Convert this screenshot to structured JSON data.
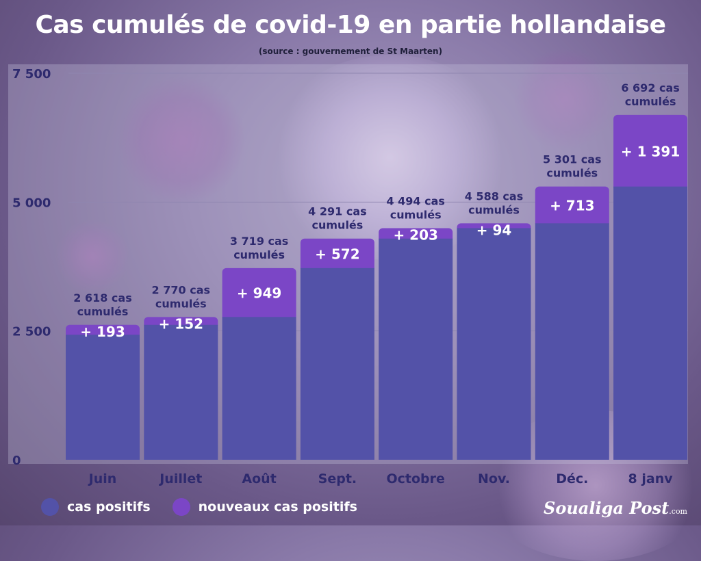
{
  "chart_data": {
    "type": "bar",
    "title": "Cas cumulés de covid-19 en partie hollandaise",
    "subtitle": "(source : gouvernement de St Maarten)",
    "categories": [
      "Juin",
      "Juillet",
      "Août",
      "Sept.",
      "Octobre",
      "Nov.",
      "Déc.",
      "8 janv"
    ],
    "stacked": true,
    "series": [
      {
        "name": "cas positifs",
        "color": "#5352a8",
        "values": [
          2425,
          2618,
          2770,
          3719,
          4291,
          4494,
          4588,
          5301
        ]
      },
      {
        "name": "nouveaux cas positifs",
        "color": "#7b46c6",
        "values": [
          193,
          152,
          949,
          572,
          203,
          94,
          713,
          1391
        ]
      }
    ],
    "increment_labels": [
      "+ 193",
      "+ 152",
      "+ 949",
      "+ 572",
      "+ 203",
      "+ 94",
      "+ 713",
      "+ 1 391"
    ],
    "total_labels": [
      [
        "2 618 cas",
        "cumulés"
      ],
      [
        "2 770 cas",
        "cumulés"
      ],
      [
        "3  719 cas",
        "cumulés"
      ],
      [
        "4 291 cas",
        "cumulés"
      ],
      [
        "4 494 cas",
        "cumulés"
      ],
      [
        "4 588 cas",
        "cumulés"
      ],
      [
        "5 301 cas",
        "cumulés"
      ],
      [
        "6 692 cas",
        "cumulés"
      ]
    ],
    "yticks": [
      0,
      2500,
      5000,
      7500
    ],
    "ytick_labels": [
      "0",
      "2 500",
      "5 000",
      "7 500"
    ],
    "ylim": [
      0,
      7500
    ],
    "grid": true,
    "legend_position": "bottom-left"
  },
  "legend": {
    "items": [
      {
        "label": "cas positifs",
        "color": "#5352a8"
      },
      {
        "label": "nouveaux cas positifs",
        "color": "#7b46c6"
      }
    ]
  },
  "brand": {
    "name": "Soualiga Post",
    "suffix": ".com"
  }
}
